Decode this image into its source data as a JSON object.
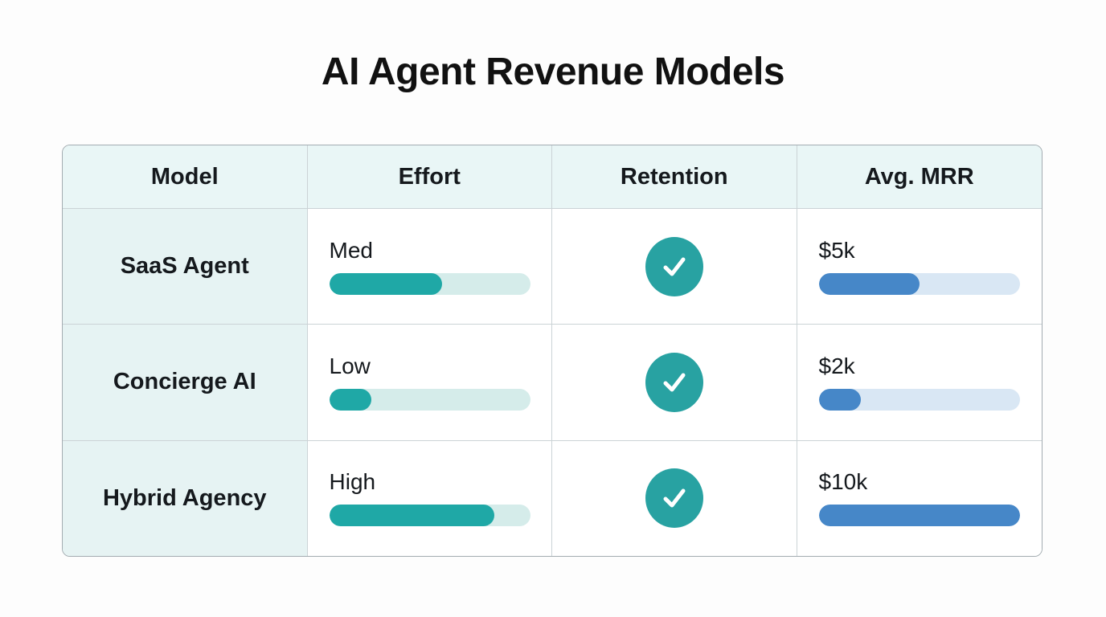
{
  "title": "AI Agent Revenue Models",
  "chart_data": {
    "type": "table",
    "title": "AI Agent Revenue Models",
    "columns": [
      "Model",
      "Effort",
      "Retention",
      "Avg. MRR"
    ],
    "rows": [
      {
        "model": "SaaS Agent",
        "effort_label": "Med",
        "effort_pct": 56,
        "retention": "check",
        "mrr_label": "$5k",
        "mrr_pct": 50
      },
      {
        "model": "Concierge AI",
        "effort_label": "Low",
        "effort_pct": 21,
        "retention": "check",
        "mrr_label": "$2k",
        "mrr_pct": 21
      },
      {
        "model": "Hybrid Agency",
        "effort_label": "High",
        "effort_pct": 82,
        "retention": "check",
        "mrr_label": "$10k",
        "mrr_pct": 100
      }
    ]
  },
  "icons": {
    "retention": "checkmark-icon"
  },
  "colors": {
    "title_color": "#111111",
    "header_bg": "#E9F6F6",
    "model_col_bg": "#E6F3F3",
    "effort_fill": "#1FA8A6",
    "effort_track": "#D5ECEA",
    "mrr_fill": "#4687C8",
    "mrr_track": "#D9E7F4",
    "check_circle": "#28A2A2",
    "table_border": "#A3ACB1",
    "cell_border": "#CBD3D6"
  }
}
